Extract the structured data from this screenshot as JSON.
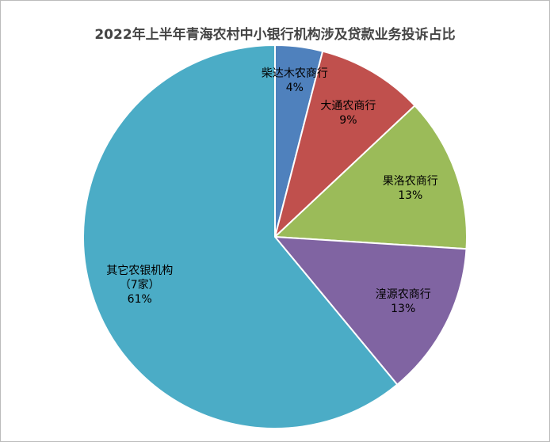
{
  "chart_data": {
    "type": "pie",
    "title": "2022年上半年青海农村中小银行机构涉及贷款业务投诉占比",
    "categories": [
      "柴达木农商行",
      "大通农商行",
      "果洛农商行",
      "湟源农商行",
      "其它农银机构\n（7家）"
    ],
    "values": [
      4,
      9,
      13,
      13,
      61
    ],
    "value_labels": [
      "4%",
      "9%",
      "13%",
      "13%",
      "61%"
    ],
    "colors": [
      "#4f81bd",
      "#c0504d",
      "#9bbb59",
      "#8064a2",
      "#4bacc6"
    ]
  }
}
